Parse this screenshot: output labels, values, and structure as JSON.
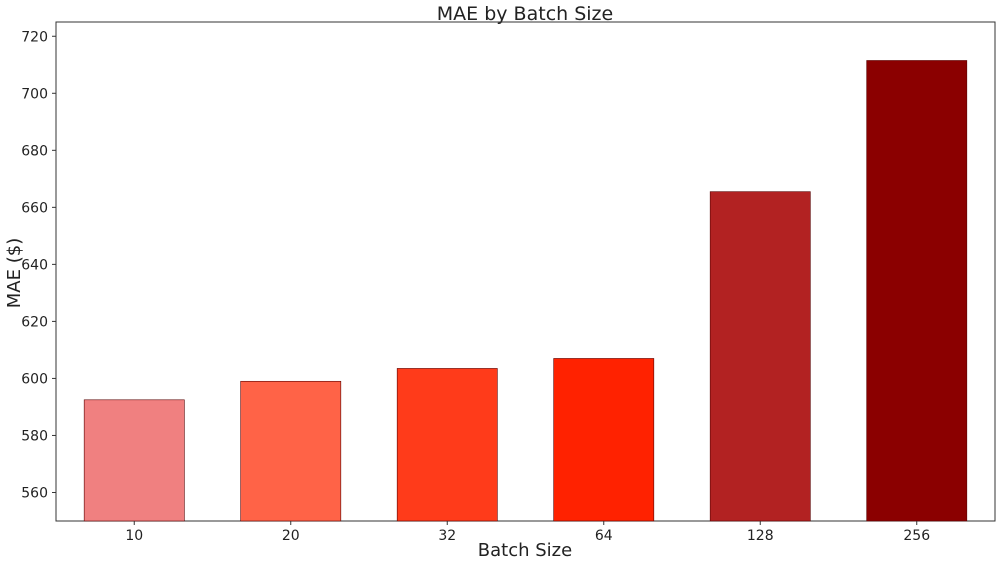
{
  "chart_data": {
    "type": "bar",
    "title": "MAE by Batch Size",
    "xlabel": "Batch Size",
    "ylabel": "MAE ($)",
    "categories": [
      "10",
      "20",
      "32",
      "64",
      "128",
      "256"
    ],
    "values": [
      592.5,
      599,
      603.5,
      607,
      665.5,
      711.5
    ],
    "colors": [
      "#f08080",
      "#ff6347",
      "#ff3b1a",
      "#ff2200",
      "#b22222",
      "#8b0000"
    ],
    "ylim": [
      550,
      725
    ],
    "yticks": [
      560,
      580,
      600,
      620,
      640,
      660,
      680,
      700,
      720
    ],
    "grid": false,
    "legend": "none"
  }
}
